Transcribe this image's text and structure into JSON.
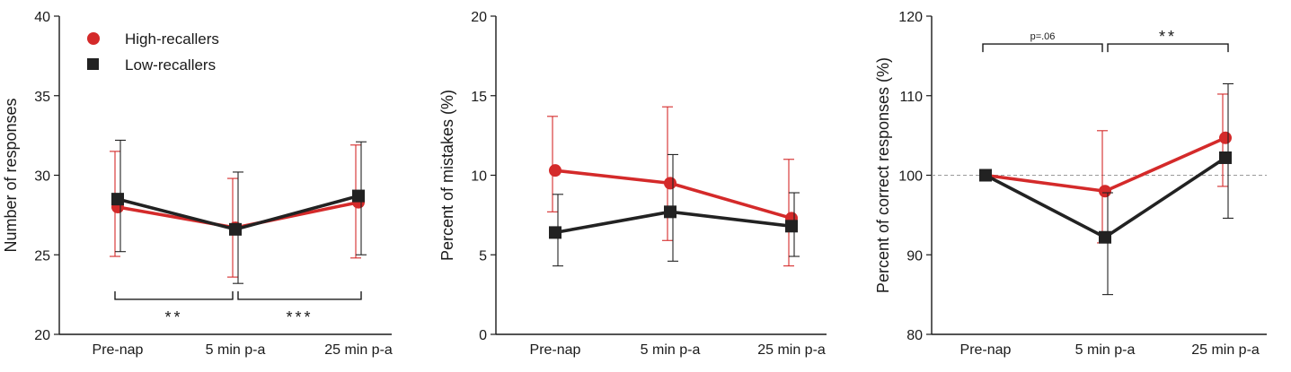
{
  "colors": {
    "high": "#d42a2a",
    "low": "#222222",
    "axis": "#1a1a1a",
    "refline": "#9a9a9a"
  },
  "legend": {
    "high": {
      "label": "High-recallers",
      "marker": "circle"
    },
    "low": {
      "label": "Low-recallers",
      "marker": "square"
    },
    "placement": "top-left of first panel"
  },
  "chart_data": [
    {
      "type": "line",
      "xlabel": "",
      "ylabel": "Number of responses",
      "categories": [
        "Pre-nap",
        "5 min p-a",
        "25 min p-a"
      ],
      "ylim": [
        20,
        40
      ],
      "yticks": [
        20,
        25,
        30,
        35,
        40
      ],
      "grid": false,
      "series": [
        {
          "name": "High-recallers",
          "values": [
            28.0,
            26.7,
            28.3
          ],
          "err_low": [
            24.9,
            23.6,
            24.8
          ],
          "err_high": [
            31.5,
            29.8,
            31.9
          ]
        },
        {
          "name": "Low-recallers",
          "values": [
            28.5,
            26.6,
            28.7
          ],
          "err_low": [
            25.2,
            23.2,
            25.0
          ],
          "err_high": [
            32.2,
            30.2,
            32.1
          ]
        }
      ],
      "refline": null,
      "annotations": [
        {
          "from": 0,
          "to": 1,
          "text": "**",
          "y": 22.2,
          "dir": "below",
          "small": false
        },
        {
          "from": 1,
          "to": 2,
          "text": "***",
          "y": 22.2,
          "dir": "below",
          "small": false
        }
      ]
    },
    {
      "type": "line",
      "xlabel": "",
      "ylabel": "Percent of mistakes (%)",
      "categories": [
        "Pre-nap",
        "5 min p-a",
        "25 min p-a"
      ],
      "ylim": [
        0,
        20
      ],
      "yticks": [
        0,
        5,
        10,
        15,
        20
      ],
      "grid": false,
      "series": [
        {
          "name": "High-recallers",
          "values": [
            10.3,
            9.5,
            7.3
          ],
          "err_low": [
            7.7,
            5.9,
            4.3
          ],
          "err_high": [
            13.7,
            14.3,
            11.0
          ]
        },
        {
          "name": "Low-recallers",
          "values": [
            6.4,
            7.7,
            6.8
          ],
          "err_low": [
            4.3,
            4.6,
            4.9
          ],
          "err_high": [
            8.8,
            11.3,
            8.9
          ]
        }
      ],
      "refline": null,
      "annotations": []
    },
    {
      "type": "line",
      "xlabel": "",
      "ylabel": "Percent of correct responses (%)",
      "categories": [
        "Pre-nap",
        "5 min p-a",
        "25 min p-a"
      ],
      "ylim": [
        80,
        120
      ],
      "yticks": [
        80,
        90,
        100,
        110,
        120
      ],
      "grid": false,
      "series": [
        {
          "name": "High-recallers",
          "values": [
            100,
            98.0,
            104.7
          ],
          "err_low": [
            100,
            91.5,
            98.6
          ],
          "err_high": [
            100,
            105.6,
            110.2
          ]
        },
        {
          "name": "Low-recallers",
          "values": [
            100,
            92.2,
            102.2
          ],
          "err_low": [
            100,
            85.0,
            94.6
          ],
          "err_high": [
            100,
            97.8,
            111.5
          ]
        }
      ],
      "refline": 100,
      "annotations": [
        {
          "from": 0,
          "to": 1,
          "text": "p=.06",
          "y": 116.5,
          "dir": "above",
          "small": true
        },
        {
          "from": 1,
          "to": 2,
          "text": "**",
          "y": 116.5,
          "dir": "above",
          "small": false
        }
      ]
    }
  ]
}
